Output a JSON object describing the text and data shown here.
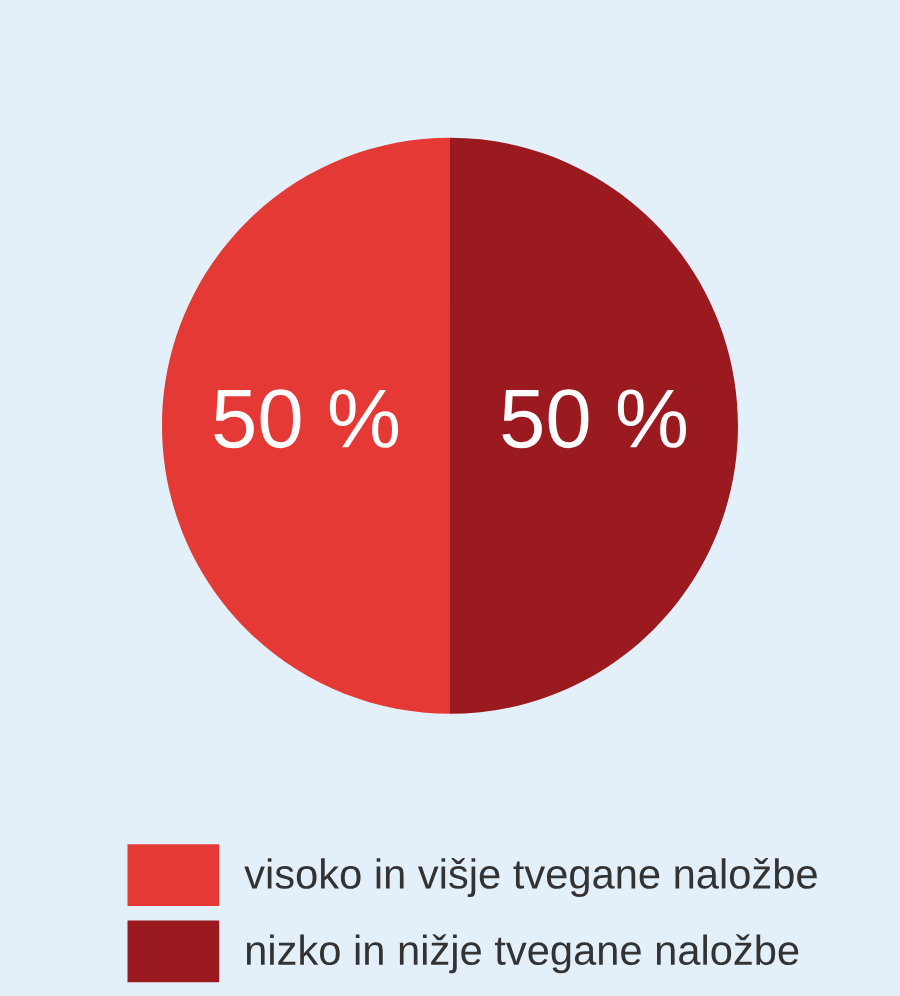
{
  "chart_data": {
    "type": "pie",
    "categories": [
      "visoko in višje tvegane naložbe",
      "nizko in nižje tvegane naložbe"
    ],
    "values": [
      50,
      50
    ],
    "colors": [
      "#e53935",
      "#9b1a1f"
    ],
    "value_labels": [
      "50 %",
      "50 %"
    ],
    "legend": "bottom"
  }
}
